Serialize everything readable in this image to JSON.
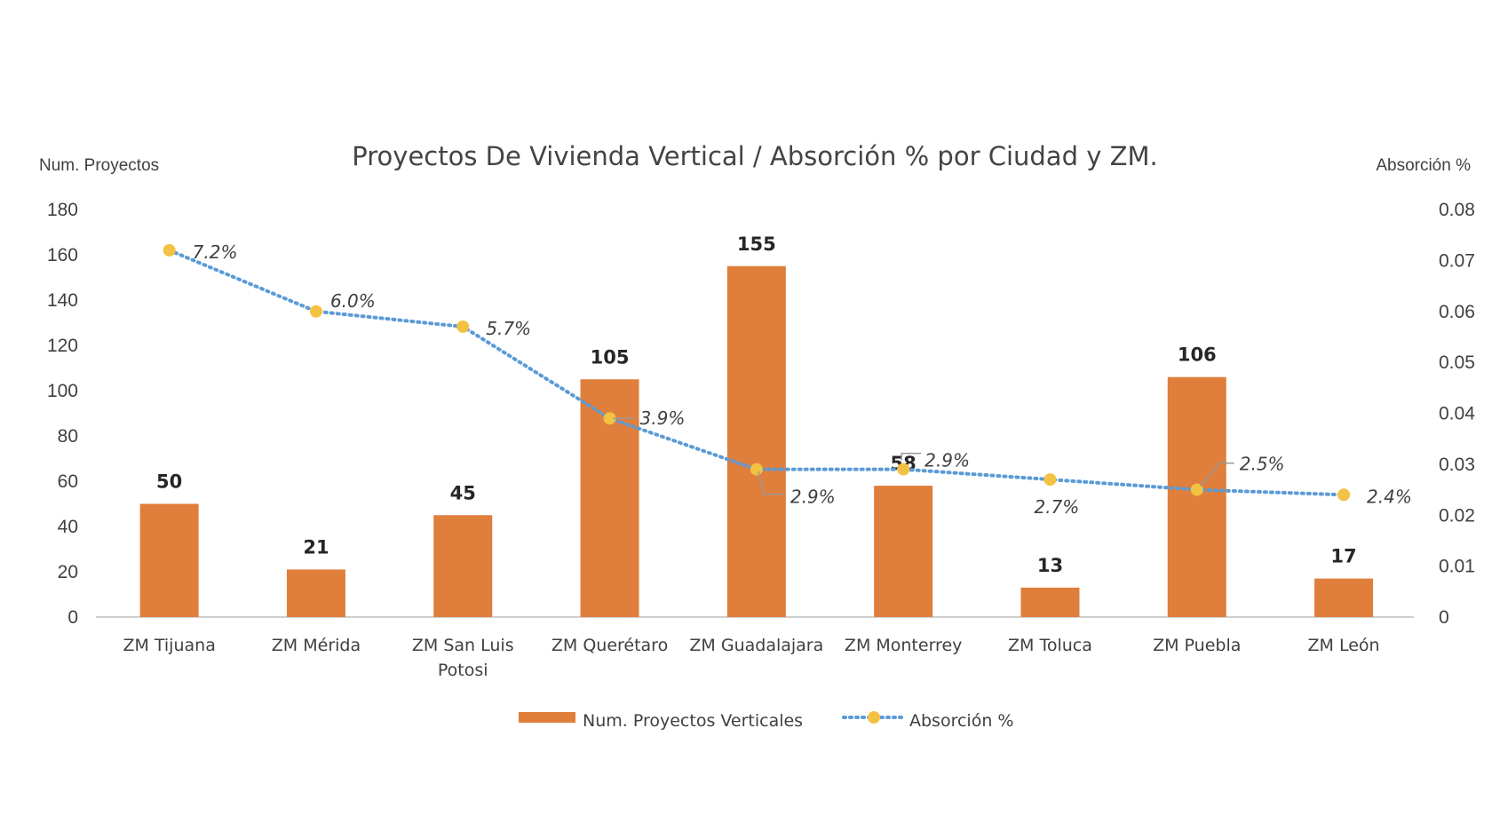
{
  "chart_data": {
    "type": "bar",
    "title": "Proyectos De Vivienda Vertical / Absorción % por Ciudad y ZM.",
    "y_left_label": "Num. Proyectos",
    "y_right_label": "Absorción %",
    "ylim_left": [
      0,
      180
    ],
    "ylim_right": [
      0,
      0.08
    ],
    "left_ticks": [
      "0",
      "20",
      "40",
      "60",
      "80",
      "100",
      "120",
      "140",
      "160",
      "180"
    ],
    "right_ticks": [
      "0",
      "0.01",
      "0.02",
      "0.03",
      "0.04",
      "0.05",
      "0.06",
      "0.07",
      "0.08"
    ],
    "categories": [
      [
        "ZM Tijuana"
      ],
      [
        "ZM Mérida"
      ],
      [
        "ZM San Luis",
        "Potosi"
      ],
      [
        "ZM Querétaro"
      ],
      [
        "ZM Guadalajara"
      ],
      [
        "ZM Monterrey"
      ],
      [
        "ZM Toluca"
      ],
      [
        "ZM Puebla"
      ],
      [
        "ZM León"
      ]
    ],
    "series": [
      {
        "name": "Num. Proyectos Verticales",
        "type": "bar",
        "axis": "left",
        "color": "#E07E3C",
        "values": [
          50,
          21,
          45,
          105,
          155,
          58,
          13,
          106,
          17
        ],
        "labels": [
          "50",
          "21",
          "45",
          "105",
          "155",
          "58",
          "13",
          "106",
          "17"
        ]
      },
      {
        "name": "Absorción %",
        "type": "line",
        "axis": "right",
        "color": "#5B9BD5",
        "marker_color": "#F4C242",
        "line_style": "dotted",
        "values": [
          0.072,
          0.06,
          0.057,
          0.039,
          0.029,
          0.029,
          0.027,
          0.025,
          0.024
        ],
        "labels": [
          "7.2%",
          "6.0%",
          "5.7%",
          "3.9%",
          "2.9%",
          "2.9%",
          "2.7%",
          "2.5%",
          "2.4%"
        ]
      }
    ],
    "grid": false,
    "legend_position": "bottom"
  }
}
